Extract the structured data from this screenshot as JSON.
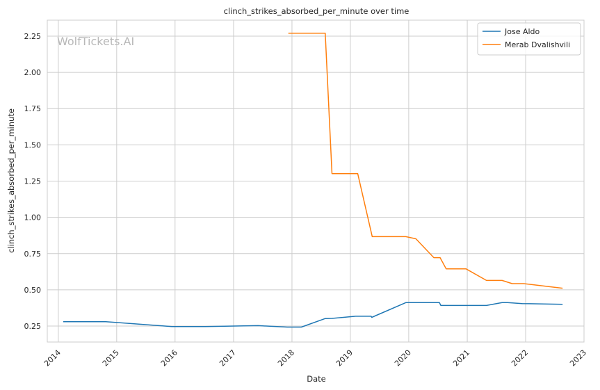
{
  "chart_data": {
    "type": "line",
    "title": "clinch_strikes_absorbed_per_minute over time",
    "xlabel": "Date",
    "ylabel": "clinch_strikes_absorbed_per_minute",
    "watermark": "WolfTickets.AI",
    "x_ticks": [
      "2014",
      "2015",
      "2016",
      "2017",
      "2018",
      "2019",
      "2020",
      "2021",
      "2022",
      "2023"
    ],
    "y_ticks": [
      "0.25",
      "0.50",
      "0.75",
      "1.00",
      "1.25",
      "1.50",
      "1.75",
      "2.00",
      "2.25"
    ],
    "xlim": [
      "2013-10-24",
      "2023-01-01"
    ],
    "ylim": [
      0.14,
      2.36
    ],
    "grid": true,
    "legend_position": "top-right",
    "series": [
      {
        "name": "Jose Aldo",
        "color": "#1f77b4",
        "points": [
          {
            "x": "2014-02-01",
            "y": 0.28
          },
          {
            "x": "2014-10-25",
            "y": 0.28
          },
          {
            "x": "2015-12-12",
            "y": 0.247
          },
          {
            "x": "2016-07-09",
            "y": 0.247
          },
          {
            "x": "2017-06-03",
            "y": 0.253
          },
          {
            "x": "2017-12-02",
            "y": 0.243
          },
          {
            "x": "2018-03-01",
            "y": 0.243
          },
          {
            "x": "2018-07-28",
            "y": 0.302
          },
          {
            "x": "2018-09-08",
            "y": 0.303
          },
          {
            "x": "2019-02-02",
            "y": 0.318
          },
          {
            "x": "2019-05-11",
            "y": 0.318
          },
          {
            "x": "2019-05-15",
            "y": 0.31
          },
          {
            "x": "2019-12-14",
            "y": 0.412
          },
          {
            "x": "2020-07-11",
            "y": 0.412
          },
          {
            "x": "2020-07-20",
            "y": 0.392
          },
          {
            "x": "2021-05-01",
            "y": 0.392
          },
          {
            "x": "2021-08-07",
            "y": 0.412
          },
          {
            "x": "2021-09-10",
            "y": 0.412
          },
          {
            "x": "2021-12-11",
            "y": 0.405
          },
          {
            "x": "2022-08-20",
            "y": 0.4
          }
        ]
      },
      {
        "name": "Merab Dvalishvili",
        "color": "#ff7f0e",
        "points": [
          {
            "x": "2017-12-09",
            "y": 2.27
          },
          {
            "x": "2018-07-28",
            "y": 2.27
          },
          {
            "x": "2018-09-08",
            "y": 1.302
          },
          {
            "x": "2019-02-16",
            "y": 1.302
          },
          {
            "x": "2019-05-18",
            "y": 0.867
          },
          {
            "x": "2019-12-14",
            "y": 0.867
          },
          {
            "x": "2020-02-15",
            "y": 0.852
          },
          {
            "x": "2020-06-06",
            "y": 0.722
          },
          {
            "x": "2020-07-15",
            "y": 0.722
          },
          {
            "x": "2020-08-22",
            "y": 0.645
          },
          {
            "x": "2020-12-24",
            "y": 0.645
          },
          {
            "x": "2021-05-01",
            "y": 0.565
          },
          {
            "x": "2021-08-07",
            "y": 0.565
          },
          {
            "x": "2021-10-09",
            "y": 0.543
          },
          {
            "x": "2021-12-20",
            "y": 0.543
          },
          {
            "x": "2022-08-20",
            "y": 0.511
          }
        ]
      }
    ]
  }
}
